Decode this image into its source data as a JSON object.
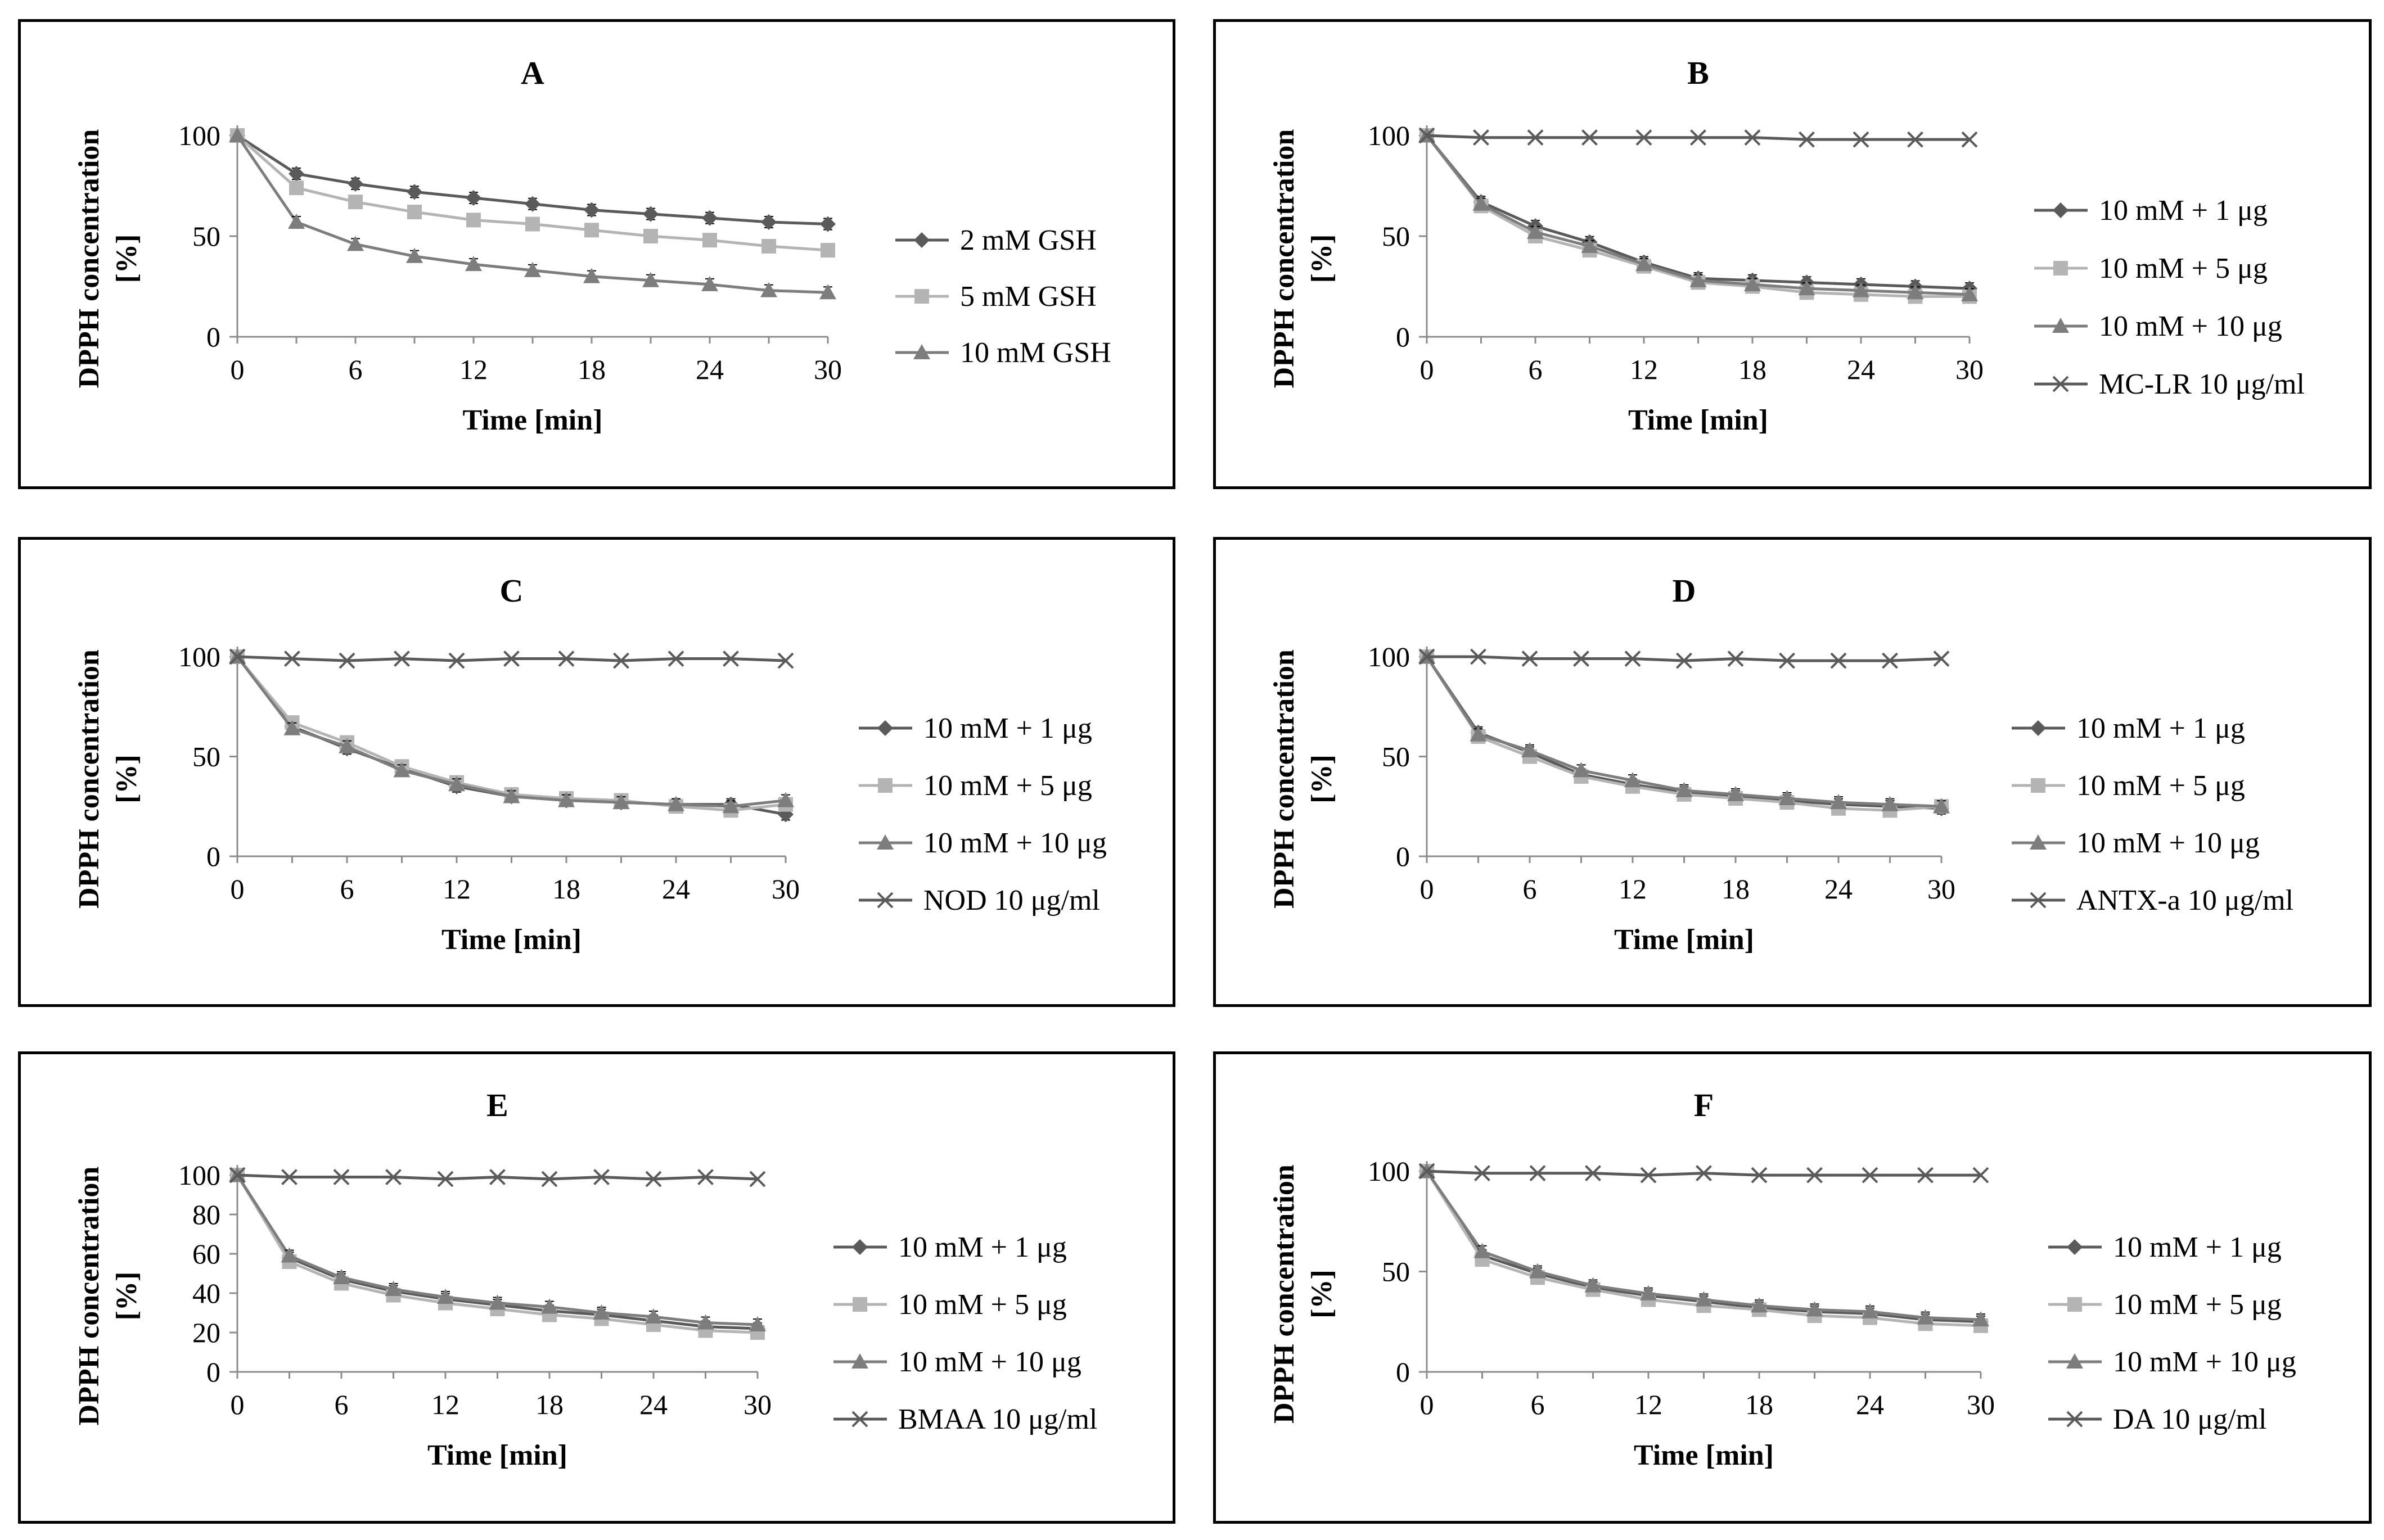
{
  "colors": {
    "s1": "#5a5a5a",
    "s2": "#b4b4b4",
    "s3": "#7d7d7d",
    "s4": "#5a5a5a",
    "axis": "#8c8c8c",
    "errbar": "#000000"
  },
  "chart_data": [
    {
      "panel": "A",
      "type": "line",
      "title": "A",
      "xlabel": "Time [min]",
      "ylabel_line1": "DPPH concentration",
      "ylabel_line2": "[%]",
      "x": [
        0,
        3,
        6,
        9,
        12,
        15,
        18,
        21,
        24,
        27,
        30
      ],
      "xticks": [
        0,
        6,
        12,
        18,
        24,
        30
      ],
      "xtick_labels": [
        "0",
        "6",
        "12",
        "18",
        "24",
        "30"
      ],
      "yticks": [
        0,
        50,
        100
      ],
      "ytick_labels": [
        "0",
        "50",
        "100"
      ],
      "ylim": [
        0,
        100
      ],
      "series": [
        {
          "name": "2 mM GSH",
          "marker": "diamond",
          "values": [
            100,
            81,
            76,
            72,
            69,
            66,
            63,
            61,
            59,
            57,
            56
          ]
        },
        {
          "name": "5 mM GSH",
          "marker": "square",
          "values": [
            100,
            74,
            67,
            62,
            58,
            56,
            53,
            50,
            48,
            45,
            43
          ]
        },
        {
          "name": "10 mM GSH",
          "marker": "triangle",
          "values": [
            100,
            57,
            46,
            40,
            36,
            33,
            30,
            28,
            26,
            23,
            22
          ]
        }
      ]
    },
    {
      "panel": "B",
      "type": "line",
      "title": "B",
      "xlabel": "Time [min]",
      "ylabel_line1": "DPPH concentration",
      "ylabel_line2": "[%]",
      "x": [
        0,
        3,
        6,
        9,
        12,
        15,
        18,
        21,
        24,
        27,
        30
      ],
      "xticks": [
        0,
        6,
        12,
        18,
        24,
        30
      ],
      "xtick_labels": [
        "0",
        "6",
        "12",
        "18",
        "24",
        "30"
      ],
      "yticks": [
        0,
        50,
        100
      ],
      "ytick_labels": [
        "0",
        "50",
        "100"
      ],
      "ylim": [
        0,
        100
      ],
      "series": [
        {
          "name": "10 mM + 1 μg",
          "marker": "diamond",
          "values": [
            100,
            67,
            55,
            47,
            37,
            29,
            28,
            27,
            26,
            25,
            24
          ]
        },
        {
          "name": "10 mM + 5 μg",
          "marker": "square",
          "values": [
            100,
            65,
            50,
            43,
            35,
            27,
            25,
            22,
            21,
            20,
            20
          ]
        },
        {
          "name": "10 mM + 10 μg",
          "marker": "triangle",
          "values": [
            100,
            66,
            52,
            45,
            36,
            28,
            26,
            24,
            23,
            22,
            21
          ]
        },
        {
          "name": "MC-LR 10 μg/ml",
          "marker": "x",
          "values": [
            100,
            99,
            99,
            99,
            99,
            99,
            99,
            98,
            98,
            98,
            98
          ]
        }
      ]
    },
    {
      "panel": "C",
      "type": "line",
      "title": "C",
      "xlabel": "Time [min]",
      "ylabel_line1": "DPPH concentration",
      "ylabel_line2": "[%]",
      "x": [
        0,
        3,
        6,
        9,
        12,
        15,
        18,
        21,
        24,
        27,
        30
      ],
      "xticks": [
        0,
        6,
        12,
        18,
        24,
        30
      ],
      "xtick_labels": [
        "0",
        "6",
        "12",
        "18",
        "24",
        "30"
      ],
      "yticks": [
        0,
        50,
        100
      ],
      "ytick_labels": [
        "0",
        "50",
        "100"
      ],
      "ylim": [
        0,
        100
      ],
      "series": [
        {
          "name": "10 mM + 1 μg",
          "marker": "diamond",
          "values": [
            100,
            65,
            54,
            44,
            35,
            30,
            28,
            27,
            26,
            26,
            21
          ]
        },
        {
          "name": "10 mM + 5 μg",
          "marker": "square",
          "values": [
            100,
            67,
            57,
            45,
            37,
            31,
            29,
            28,
            25,
            23,
            26
          ]
        },
        {
          "name": "10 mM + 10 μg",
          "marker": "triangle",
          "values": [
            100,
            64,
            55,
            43,
            36,
            30,
            28,
            27,
            26,
            25,
            28
          ]
        },
        {
          "name": "NOD 10 μg/ml",
          "marker": "x",
          "values": [
            100,
            99,
            98,
            99,
            98,
            99,
            99,
            98,
            99,
            99,
            98
          ]
        }
      ]
    },
    {
      "panel": "D",
      "type": "line",
      "title": "D",
      "xlabel": "Time [min]",
      "ylabel_line1": "DPPH concentration",
      "ylabel_line2": "[%]",
      "x": [
        0,
        3,
        6,
        9,
        12,
        15,
        18,
        21,
        24,
        27,
        30
      ],
      "xticks": [
        0,
        6,
        12,
        18,
        24,
        30
      ],
      "xtick_labels": [
        "0",
        "6",
        "12",
        "18",
        "24",
        "30"
      ],
      "yticks": [
        0,
        50,
        100
      ],
      "ytick_labels": [
        "0",
        "50",
        "100"
      ],
      "ylim": [
        0,
        100
      ],
      "series": [
        {
          "name": "10 mM + 1 μg",
          "marker": "diamond",
          "values": [
            100,
            62,
            52,
            41,
            36,
            32,
            30,
            28,
            26,
            25,
            24
          ]
        },
        {
          "name": "10 mM + 5 μg",
          "marker": "square",
          "values": [
            100,
            60,
            50,
            40,
            35,
            31,
            29,
            27,
            24,
            23,
            25
          ]
        },
        {
          "name": "10 mM + 10 μg",
          "marker": "triangle",
          "values": [
            100,
            61,
            53,
            43,
            38,
            33,
            31,
            29,
            27,
            26,
            25
          ]
        },
        {
          "name": "ANTX-a 10 μg/ml",
          "marker": "x",
          "values": [
            100,
            100,
            99,
            99,
            99,
            98,
            99,
            98,
            98,
            98,
            99
          ]
        }
      ]
    },
    {
      "panel": "E",
      "type": "line",
      "title": "E",
      "xlabel": "Time [min]",
      "ylabel_line1": "DPPH concentration",
      "ylabel_line2": "[%]",
      "x": [
        0,
        3,
        6,
        9,
        12,
        15,
        18,
        21,
        24,
        27,
        30
      ],
      "xticks": [
        0,
        6,
        12,
        18,
        24,
        30
      ],
      "xtick_labels": [
        "0",
        "6",
        "12",
        "18",
        "24",
        "30"
      ],
      "yticks": [
        0,
        20,
        40,
        60,
        80,
        100
      ],
      "ytick_labels": [
        "0",
        "20",
        "40",
        "60",
        "80",
        "100"
      ],
      "ylim": [
        0,
        100
      ],
      "series": [
        {
          "name": "10 mM + 1 μg",
          "marker": "diamond",
          "values": [
            100,
            58,
            47,
            41,
            37,
            34,
            31,
            29,
            26,
            23,
            22
          ]
        },
        {
          "name": "10 mM + 5 μg",
          "marker": "square",
          "values": [
            100,
            56,
            45,
            39,
            35,
            32,
            29,
            27,
            24,
            21,
            20
          ]
        },
        {
          "name": "10 mM + 10 μg",
          "marker": "triangle",
          "values": [
            100,
            59,
            48,
            42,
            38,
            35,
            33,
            30,
            28,
            25,
            24
          ]
        },
        {
          "name": "BMAA 10 μg/ml",
          "marker": "x",
          "values": [
            100,
            99,
            99,
            99,
            98,
            99,
            98,
            99,
            98,
            99,
            98
          ]
        }
      ]
    },
    {
      "panel": "F",
      "type": "line",
      "title": "F",
      "xlabel": "Time [min]",
      "ylabel_line1": "DPPH concentration",
      "ylabel_line2": "[%]",
      "x": [
        0,
        3,
        6,
        9,
        12,
        15,
        18,
        21,
        24,
        27,
        30
      ],
      "xticks": [
        0,
        6,
        12,
        18,
        24,
        30
      ],
      "xtick_labels": [
        "0",
        "6",
        "12",
        "18",
        "24",
        "30"
      ],
      "yticks": [
        0,
        50,
        100
      ],
      "ytick_labels": [
        "0",
        "50",
        "100"
      ],
      "ylim": [
        0,
        100
      ],
      "series": [
        {
          "name": "10 mM + 1 μg",
          "marker": "diamond",
          "values": [
            100,
            58,
            49,
            42,
            38,
            35,
            32,
            30,
            29,
            26,
            25
          ]
        },
        {
          "name": "10 mM + 5 μg",
          "marker": "square",
          "values": [
            100,
            56,
            47,
            41,
            36,
            33,
            31,
            28,
            27,
            24,
            23
          ]
        },
        {
          "name": "10 mM + 10 μg",
          "marker": "triangle",
          "values": [
            100,
            60,
            50,
            43,
            39,
            36,
            33,
            31,
            30,
            27,
            26
          ]
        },
        {
          "name": "DA 10 μg/ml",
          "marker": "x",
          "values": [
            100,
            99,
            99,
            99,
            98,
            99,
            98,
            98,
            98,
            98,
            98
          ]
        }
      ]
    }
  ]
}
